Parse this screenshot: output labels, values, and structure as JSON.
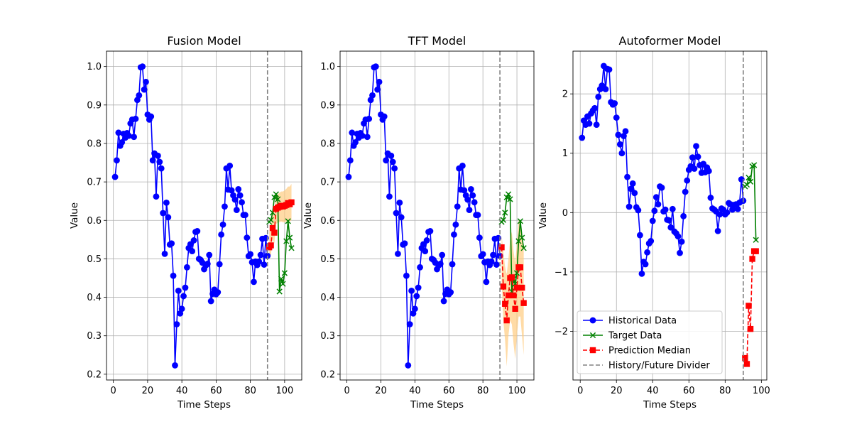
{
  "chart_data": [
    {
      "type": "line",
      "title": "Fusion Model",
      "xlabel": "Time Steps",
      "ylabel": "Value",
      "xlim": [
        -4,
        110
      ],
      "ylim": [
        0.185,
        1.04
      ],
      "xticks": [
        0,
        20,
        40,
        60,
        80,
        100
      ],
      "yticks": [
        0.2,
        0.3,
        0.4,
        0.5,
        0.6,
        0.7,
        0.8,
        0.9,
        1.0
      ],
      "xtick_labels": [
        "0",
        "20",
        "40",
        "60",
        "80",
        "100"
      ],
      "ytick_labels": [
        "0.2",
        "0.3",
        "0.4",
        "0.5",
        "0.6",
        "0.7",
        "0.8",
        "0.9",
        "1.0"
      ],
      "grid": true,
      "divider_x": 90,
      "colors": {
        "historical": "#0000ff",
        "target": "#008000",
        "prediction": "#ff0000",
        "band": "#ffcc80",
        "divider": "#808080"
      },
      "series": [
        {
          "name": "Historical Data",
          "role": "historical",
          "x": [
            1,
            2,
            3,
            4,
            5,
            6,
            7,
            8,
            9,
            10,
            11,
            12,
            13,
            14,
            15,
            16,
            17,
            18,
            19,
            20,
            21,
            22,
            23,
            24,
            25,
            26,
            27,
            28,
            29,
            30,
            31,
            32,
            33,
            34,
            35,
            36,
            37,
            38,
            39,
            40,
            41,
            42,
            43,
            44,
            45,
            46,
            47,
            48,
            49,
            50,
            51,
            52,
            53,
            54,
            55,
            56,
            57,
            58,
            59,
            60,
            61,
            62,
            63,
            64,
            65,
            66,
            67,
            68,
            69,
            70,
            71,
            72,
            73,
            74,
            75,
            76,
            77,
            78,
            79,
            80,
            81,
            82,
            83,
            84,
            85,
            86,
            87,
            88,
            89,
            90
          ],
          "y": [
            0.713,
            0.756,
            0.828,
            0.794,
            0.803,
            0.825,
            0.815,
            0.827,
            0.82,
            0.852,
            0.862,
            0.817,
            0.864,
            0.913,
            0.925,
            0.998,
            1.0,
            0.94,
            0.96,
            0.875,
            0.862,
            0.87,
            0.756,
            0.774,
            0.662,
            0.768,
            0.752,
            0.735,
            0.619,
            0.513,
            0.646,
            0.608,
            0.537,
            0.54,
            0.456,
            0.223,
            0.33,
            0.417,
            0.358,
            0.37,
            0.403,
            0.425,
            0.478,
            0.528,
            0.538,
            0.52,
            0.548,
            0.57,
            0.572,
            0.5,
            0.497,
            0.49,
            0.473,
            0.483,
            0.487,
            0.51,
            0.39,
            0.409,
            0.42,
            0.408,
            0.413,
            0.486,
            0.563,
            0.589,
            0.636,
            0.735,
            0.68,
            0.742,
            0.678,
            0.665,
            0.654,
            0.627,
            0.681,
            0.665,
            0.647,
            0.614,
            0.614,
            0.555,
            0.507,
            0.512,
            0.491,
            0.44,
            0.493,
            0.484,
            0.493,
            0.51,
            0.552,
            0.485,
            0.554,
            0.508
          ]
        },
        {
          "name": "Target Data",
          "role": "target",
          "x": [
            91,
            92,
            93,
            94,
            95,
            96,
            97,
            98,
            99,
            100,
            101,
            102,
            103,
            104
          ],
          "y": [
            0.596,
            0.601,
            0.62,
            0.66,
            0.668,
            0.655,
            0.415,
            0.448,
            0.435,
            0.463,
            0.546,
            0.598,
            0.555,
            0.528
          ]
        },
        {
          "name": "Prediction Median",
          "role": "prediction",
          "x": [
            91,
            92,
            93,
            94,
            95,
            96,
            97,
            98,
            99,
            100,
            101,
            102,
            103,
            104
          ],
          "y": [
            0.53,
            0.535,
            0.58,
            0.568,
            0.63,
            0.633,
            0.635,
            0.638,
            0.636,
            0.638,
            0.64,
            0.645,
            0.642,
            0.647
          ]
        }
      ],
      "band": {
        "x": [
          91,
          92,
          93,
          94,
          95,
          96,
          97,
          98,
          99,
          100,
          101,
          102,
          103,
          104
        ],
        "lower": [
          0.5,
          0.51,
          0.55,
          0.54,
          0.59,
          0.595,
          0.595,
          0.597,
          0.595,
          0.595,
          0.597,
          0.6,
          0.597,
          0.6
        ],
        "upper": [
          0.57,
          0.58,
          0.63,
          0.62,
          0.665,
          0.668,
          0.672,
          0.675,
          0.675,
          0.678,
          0.682,
          0.688,
          0.688,
          0.695
        ]
      }
    },
    {
      "type": "line",
      "title": "TFT Model",
      "xlabel": "Time Steps",
      "ylabel": "Value",
      "xlim": [
        -4,
        110
      ],
      "ylim": [
        0.185,
        1.04
      ],
      "xticks": [
        0,
        20,
        40,
        60,
        80,
        100
      ],
      "yticks": [
        0.2,
        0.3,
        0.4,
        0.5,
        0.6,
        0.7,
        0.8,
        0.9,
        1.0
      ],
      "xtick_labels": [
        "0",
        "20",
        "40",
        "60",
        "80",
        "100"
      ],
      "ytick_labels": [
        "0.2",
        "0.3",
        "0.4",
        "0.5",
        "0.6",
        "0.7",
        "0.8",
        "0.9",
        "1.0"
      ],
      "grid": true,
      "divider_x": 90,
      "colors": {
        "historical": "#0000ff",
        "target": "#008000",
        "prediction": "#ff0000",
        "band": "#ffcc80",
        "divider": "#808080"
      },
      "series": [
        {
          "name": "Historical Data",
          "role": "historical",
          "x": [
            1,
            2,
            3,
            4,
            5,
            6,
            7,
            8,
            9,
            10,
            11,
            12,
            13,
            14,
            15,
            16,
            17,
            18,
            19,
            20,
            21,
            22,
            23,
            24,
            25,
            26,
            27,
            28,
            29,
            30,
            31,
            32,
            33,
            34,
            35,
            36,
            37,
            38,
            39,
            40,
            41,
            42,
            43,
            44,
            45,
            46,
            47,
            48,
            49,
            50,
            51,
            52,
            53,
            54,
            55,
            56,
            57,
            58,
            59,
            60,
            61,
            62,
            63,
            64,
            65,
            66,
            67,
            68,
            69,
            70,
            71,
            72,
            73,
            74,
            75,
            76,
            77,
            78,
            79,
            80,
            81,
            82,
            83,
            84,
            85,
            86,
            87,
            88,
            89,
            90
          ],
          "y": [
            0.713,
            0.756,
            0.828,
            0.794,
            0.803,
            0.825,
            0.815,
            0.827,
            0.82,
            0.852,
            0.862,
            0.817,
            0.864,
            0.913,
            0.925,
            0.998,
            1.0,
            0.94,
            0.96,
            0.875,
            0.862,
            0.87,
            0.756,
            0.774,
            0.662,
            0.768,
            0.752,
            0.735,
            0.619,
            0.513,
            0.646,
            0.608,
            0.537,
            0.54,
            0.456,
            0.223,
            0.33,
            0.417,
            0.358,
            0.37,
            0.403,
            0.425,
            0.478,
            0.528,
            0.538,
            0.52,
            0.548,
            0.57,
            0.572,
            0.5,
            0.497,
            0.49,
            0.473,
            0.483,
            0.487,
            0.51,
            0.39,
            0.409,
            0.42,
            0.408,
            0.413,
            0.486,
            0.563,
            0.589,
            0.636,
            0.735,
            0.68,
            0.742,
            0.678,
            0.665,
            0.654,
            0.627,
            0.681,
            0.665,
            0.647,
            0.614,
            0.614,
            0.555,
            0.507,
            0.512,
            0.491,
            0.44,
            0.493,
            0.484,
            0.493,
            0.51,
            0.552,
            0.485,
            0.554,
            0.508
          ]
        },
        {
          "name": "Target Data",
          "role": "target",
          "x": [
            91,
            92,
            93,
            94,
            95,
            96,
            97,
            98,
            99,
            100,
            101,
            102,
            103,
            104
          ],
          "y": [
            0.596,
            0.601,
            0.62,
            0.66,
            0.668,
            0.655,
            0.415,
            0.448,
            0.435,
            0.463,
            0.546,
            0.598,
            0.555,
            0.528
          ]
        },
        {
          "name": "Prediction Median",
          "role": "prediction",
          "x": [
            91,
            92,
            93,
            94,
            95,
            96,
            97,
            98,
            99,
            100,
            101,
            102,
            103,
            104
          ],
          "y": [
            0.53,
            0.428,
            0.383,
            0.34,
            0.405,
            0.45,
            0.452,
            0.405,
            0.37,
            0.425,
            0.478,
            0.478,
            0.425,
            0.385
          ]
        }
      ],
      "band": {
        "x": [
          91,
          92,
          93,
          94,
          95,
          96,
          97,
          98,
          99,
          100,
          101,
          102,
          103,
          104
        ],
        "lower": [
          0.44,
          0.34,
          0.29,
          0.22,
          0.3,
          0.34,
          0.33,
          0.28,
          0.24,
          0.3,
          0.35,
          0.35,
          0.3,
          0.25
        ],
        "upper": [
          0.56,
          0.52,
          0.48,
          0.46,
          0.5,
          0.55,
          0.57,
          0.52,
          0.49,
          0.54,
          0.6,
          0.6,
          0.55,
          0.52
        ]
      }
    },
    {
      "type": "line",
      "title": "Autoformer Model",
      "xlabel": "Time Steps",
      "ylabel": "Value",
      "xlim": [
        -4,
        103
      ],
      "ylim": [
        -2.82,
        2.72
      ],
      "xticks": [
        0,
        20,
        40,
        60,
        80,
        100
      ],
      "yticks": [
        -2,
        -1,
        0,
        1,
        2
      ],
      "xtick_labels": [
        "0",
        "20",
        "40",
        "60",
        "80",
        "100"
      ],
      "ytick_labels": [
        "−2",
        "−1",
        "0",
        "1",
        "2"
      ],
      "grid": true,
      "divider_x": 90,
      "legend_loc": "lower left",
      "legend": [
        "Historical Data",
        "Target Data",
        "Prediction Median",
        "History/Future Divider"
      ],
      "colors": {
        "historical": "#0000ff",
        "target": "#008000",
        "prediction": "#ff0000",
        "band": "#ffcc80",
        "divider": "#808080"
      },
      "series": [
        {
          "name": "Historical Data",
          "role": "historical",
          "x": [
            1,
            2,
            3,
            4,
            5,
            6,
            7,
            8,
            9,
            10,
            11,
            12,
            13,
            14,
            15,
            16,
            17,
            18,
            19,
            20,
            21,
            22,
            23,
            24,
            25,
            26,
            27,
            28,
            29,
            30,
            31,
            32,
            33,
            34,
            35,
            36,
            37,
            38,
            39,
            40,
            41,
            42,
            43,
            44,
            45,
            46,
            47,
            48,
            49,
            50,
            51,
            52,
            53,
            54,
            55,
            56,
            57,
            58,
            59,
            60,
            61,
            62,
            63,
            64,
            65,
            66,
            67,
            68,
            69,
            70,
            71,
            72,
            73,
            74,
            75,
            76,
            77,
            78,
            79,
            80,
            81,
            82,
            83,
            84,
            85,
            86,
            87,
            88,
            89,
            90
          ],
          "y": [
            1.26,
            1.55,
            1.48,
            1.62,
            1.5,
            1.67,
            1.72,
            1.76,
            1.48,
            1.95,
            2.08,
            2.14,
            2.47,
            2.08,
            2.42,
            2.41,
            1.86,
            1.82,
            1.84,
            1.6,
            1.31,
            1.15,
            1.0,
            1.29,
            1.37,
            0.6,
            0.1,
            0.4,
            0.49,
            0.33,
            0.09,
            0.04,
            -0.38,
            -1.03,
            -0.83,
            -0.87,
            -0.67,
            -0.52,
            -0.48,
            -0.14,
            0.03,
            0.26,
            0.14,
            0.44,
            0.42,
            0.02,
            0.05,
            -0.12,
            -0.13,
            -0.25,
            0.06,
            -0.32,
            -0.35,
            -0.4,
            -0.68,
            -0.49,
            -0.06,
            0.35,
            0.54,
            0.72,
            0.78,
            0.93,
            0.74,
            1.12,
            0.94,
            0.8,
            0.67,
            0.82,
            0.68,
            0.76,
            0.7,
            0.25,
            0.07,
            0.05,
            0.02,
            -0.31,
            -0.03,
            0.07,
            0.05,
            -0.03,
            0.0,
            0.16,
            0.14,
            0.05,
            0.13,
            0.14,
            0.06,
            0.17,
            0.56,
            0.2
          ]
        },
        {
          "name": "Target Data",
          "role": "target",
          "x": [
            91,
            92,
            93,
            94,
            95,
            96,
            97
          ],
          "y": [
            0.44,
            0.47,
            0.59,
            0.52,
            0.78,
            0.8,
            -0.46
          ]
        },
        {
          "name": "Prediction Median",
          "role": "prediction",
          "x": [
            91,
            92,
            93,
            94,
            95,
            96,
            97
          ],
          "y": [
            -2.45,
            -2.55,
            -1.57,
            -1.96,
            -0.78,
            -0.65,
            -0.65
          ]
        }
      ]
    }
  ]
}
